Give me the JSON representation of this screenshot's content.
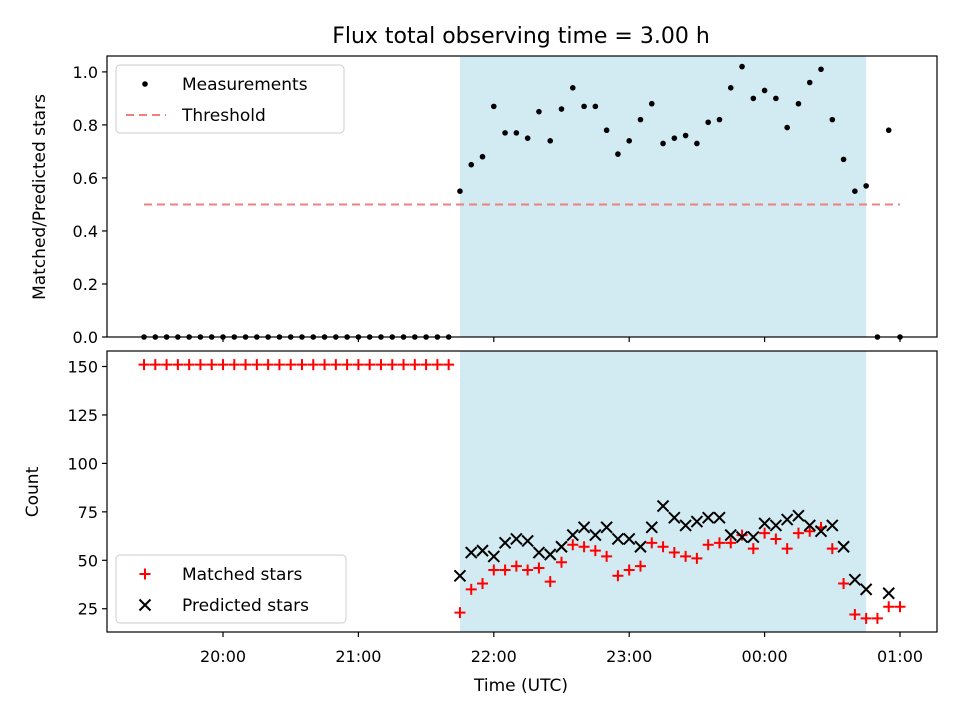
{
  "chart_data": [
    {
      "type": "scatter",
      "title": "Flux total observing time = 3.00 h",
      "xlabel": "",
      "ylabel": "Matched/Predicted stars",
      "ylim": [
        0,
        1.06
      ],
      "yticks": [
        "0.0",
        "0.2",
        "0.4",
        "0.6",
        "0.8",
        "1.0"
      ],
      "shaded_region": {
        "x_start": "21:45",
        "x_end": "00:45",
        "color": "#add8e6"
      },
      "legend": {
        "placement": "top-left",
        "entries": [
          "Measurements",
          "Threshold"
        ]
      },
      "series": [
        {
          "name": "Measurements",
          "marker": "dot",
          "color": "#000000",
          "points": [
            [
              "19:25",
              0
            ],
            [
              "19:30",
              0
            ],
            [
              "19:35",
              0
            ],
            [
              "19:40",
              0
            ],
            [
              "19:45",
              0
            ],
            [
              "19:50",
              0
            ],
            [
              "19:55",
              0
            ],
            [
              "20:00",
              0
            ],
            [
              "20:05",
              0
            ],
            [
              "20:10",
              0
            ],
            [
              "20:15",
              0
            ],
            [
              "20:20",
              0
            ],
            [
              "20:25",
              0
            ],
            [
              "20:30",
              0
            ],
            [
              "20:35",
              0
            ],
            [
              "20:40",
              0
            ],
            [
              "20:45",
              0
            ],
            [
              "20:50",
              0
            ],
            [
              "20:55",
              0
            ],
            [
              "21:00",
              0
            ],
            [
              "21:05",
              0
            ],
            [
              "21:10",
              0
            ],
            [
              "21:15",
              0
            ],
            [
              "21:20",
              0
            ],
            [
              "21:25",
              0
            ],
            [
              "21:30",
              0
            ],
            [
              "21:35",
              0
            ],
            [
              "21:40",
              0
            ],
            [
              "21:45",
              0.55
            ],
            [
              "21:50",
              0.65
            ],
            [
              "21:55",
              0.68
            ],
            [
              "22:00",
              0.87
            ],
            [
              "22:05",
              0.77
            ],
            [
              "22:10",
              0.77
            ],
            [
              "22:15",
              0.75
            ],
            [
              "22:20",
              0.85
            ],
            [
              "22:25",
              0.74
            ],
            [
              "22:30",
              0.86
            ],
            [
              "22:35",
              0.94
            ],
            [
              "22:40",
              0.87
            ],
            [
              "22:45",
              0.87
            ],
            [
              "22:50",
              0.78
            ],
            [
              "22:55",
              0.69
            ],
            [
              "23:00",
              0.74
            ],
            [
              "23:05",
              0.82
            ],
            [
              "23:10",
              0.88
            ],
            [
              "23:15",
              0.73
            ],
            [
              "23:20",
              0.75
            ],
            [
              "23:25",
              0.76
            ],
            [
              "23:30",
              0.73
            ],
            [
              "23:35",
              0.81
            ],
            [
              "23:40",
              0.82
            ],
            [
              "23:45",
              0.94
            ],
            [
              "23:50",
              1.02
            ],
            [
              "23:55",
              0.9
            ],
            [
              "00:00",
              0.93
            ],
            [
              "00:05",
              0.9
            ],
            [
              "00:10",
              0.79
            ],
            [
              "00:15",
              0.88
            ],
            [
              "00:20",
              0.96
            ],
            [
              "00:25",
              1.01
            ],
            [
              "00:30",
              0.82
            ],
            [
              "00:35",
              0.67
            ],
            [
              "00:40",
              0.55
            ],
            [
              "00:45",
              0.57
            ],
            [
              "00:50",
              0
            ],
            [
              "00:55",
              0.78
            ],
            [
              "01:00",
              0
            ]
          ]
        },
        {
          "name": "Threshold",
          "marker": "dashed-line",
          "color": "#f08080",
          "points": [
            [
              "19:25",
              0.5
            ],
            [
              "01:00",
              0.5
            ]
          ]
        }
      ]
    },
    {
      "type": "scatter",
      "title": "",
      "xlabel": "Time (UTC)",
      "ylabel": "Count",
      "ylim": [
        13,
        158
      ],
      "yticks": [
        "25",
        "50",
        "75",
        "100",
        "125",
        "150"
      ],
      "xticks": [
        "20:00",
        "21:00",
        "22:00",
        "23:00",
        "00:00",
        "01:00"
      ],
      "shaded_region": {
        "x_start": "21:45",
        "x_end": "00:45",
        "color": "#add8e6"
      },
      "legend": {
        "placement": "bottom-left",
        "entries": [
          "Matched stars",
          "Predicted stars"
        ]
      },
      "series": [
        {
          "name": "Matched stars",
          "marker": "plus",
          "color": "#ff0000",
          "points": [
            [
              "19:25",
              151
            ],
            [
              "19:30",
              151
            ],
            [
              "19:35",
              151
            ],
            [
              "19:40",
              151
            ],
            [
              "19:45",
              151
            ],
            [
              "19:50",
              151
            ],
            [
              "19:55",
              151
            ],
            [
              "20:00",
              151
            ],
            [
              "20:05",
              151
            ],
            [
              "20:10",
              151
            ],
            [
              "20:15",
              151
            ],
            [
              "20:20",
              151
            ],
            [
              "20:25",
              151
            ],
            [
              "20:30",
              151
            ],
            [
              "20:35",
              151
            ],
            [
              "20:40",
              151
            ],
            [
              "20:45",
              151
            ],
            [
              "20:50",
              151
            ],
            [
              "20:55",
              151
            ],
            [
              "21:00",
              151
            ],
            [
              "21:05",
              151
            ],
            [
              "21:10",
              151
            ],
            [
              "21:15",
              151
            ],
            [
              "21:20",
              151
            ],
            [
              "21:25",
              151
            ],
            [
              "21:30",
              151
            ],
            [
              "21:35",
              151
            ],
            [
              "21:40",
              151
            ],
            [
              "21:45",
              23
            ],
            [
              "21:50",
              35
            ],
            [
              "21:55",
              38
            ],
            [
              "22:00",
              45
            ],
            [
              "22:05",
              45
            ],
            [
              "22:10",
              47
            ],
            [
              "22:15",
              45
            ],
            [
              "22:20",
              46
            ],
            [
              "22:25",
              39
            ],
            [
              "22:30",
              49
            ],
            [
              "22:35",
              58
            ],
            [
              "22:40",
              57
            ],
            [
              "22:45",
              55
            ],
            [
              "22:50",
              52
            ],
            [
              "22:55",
              42
            ],
            [
              "23:00",
              45
            ],
            [
              "23:05",
              47
            ],
            [
              "23:10",
              59
            ],
            [
              "23:15",
              57
            ],
            [
              "23:20",
              54
            ],
            [
              "23:25",
              52
            ],
            [
              "23:30",
              51
            ],
            [
              "23:35",
              58
            ],
            [
              "23:40",
              59
            ],
            [
              "23:45",
              59
            ],
            [
              "23:50",
              63
            ],
            [
              "23:55",
              56
            ],
            [
              "00:00",
              64
            ],
            [
              "00:05",
              61
            ],
            [
              "00:10",
              56
            ],
            [
              "00:15",
              64
            ],
            [
              "00:20",
              65
            ],
            [
              "00:25",
              67
            ],
            [
              "00:30",
              56
            ],
            [
              "00:35",
              38
            ],
            [
              "00:40",
              22
            ],
            [
              "00:45",
              20
            ],
            [
              "00:50",
              20
            ],
            [
              "00:55",
              26
            ],
            [
              "01:00",
              26
            ]
          ]
        },
        {
          "name": "Predicted stars",
          "marker": "x",
          "color": "#000000",
          "points": [
            [
              "21:45",
              42
            ],
            [
              "21:50",
              54
            ],
            [
              "21:55",
              55
            ],
            [
              "22:00",
              52
            ],
            [
              "22:05",
              59
            ],
            [
              "22:10",
              61
            ],
            [
              "22:15",
              60
            ],
            [
              "22:20",
              54
            ],
            [
              "22:25",
              53
            ],
            [
              "22:30",
              57
            ],
            [
              "22:35",
              63
            ],
            [
              "22:40",
              67
            ],
            [
              "22:45",
              63
            ],
            [
              "22:50",
              67
            ],
            [
              "22:55",
              61
            ],
            [
              "23:00",
              61
            ],
            [
              "23:05",
              57
            ],
            [
              "23:10",
              67
            ],
            [
              "23:15",
              78
            ],
            [
              "23:20",
              72
            ],
            [
              "23:25",
              68
            ],
            [
              "23:30",
              70
            ],
            [
              "23:35",
              72
            ],
            [
              "23:40",
              72
            ],
            [
              "23:45",
              63
            ],
            [
              "23:50",
              62
            ],
            [
              "23:55",
              62
            ],
            [
              "00:00",
              69
            ],
            [
              "00:05",
              68
            ],
            [
              "00:10",
              71
            ],
            [
              "00:15",
              73
            ],
            [
              "00:20",
              68
            ],
            [
              "00:25",
              65
            ],
            [
              "00:30",
              68
            ],
            [
              "00:35",
              57
            ],
            [
              "00:40",
              40
            ],
            [
              "00:45",
              35
            ],
            [
              "00:55",
              33
            ]
          ]
        }
      ]
    }
  ]
}
